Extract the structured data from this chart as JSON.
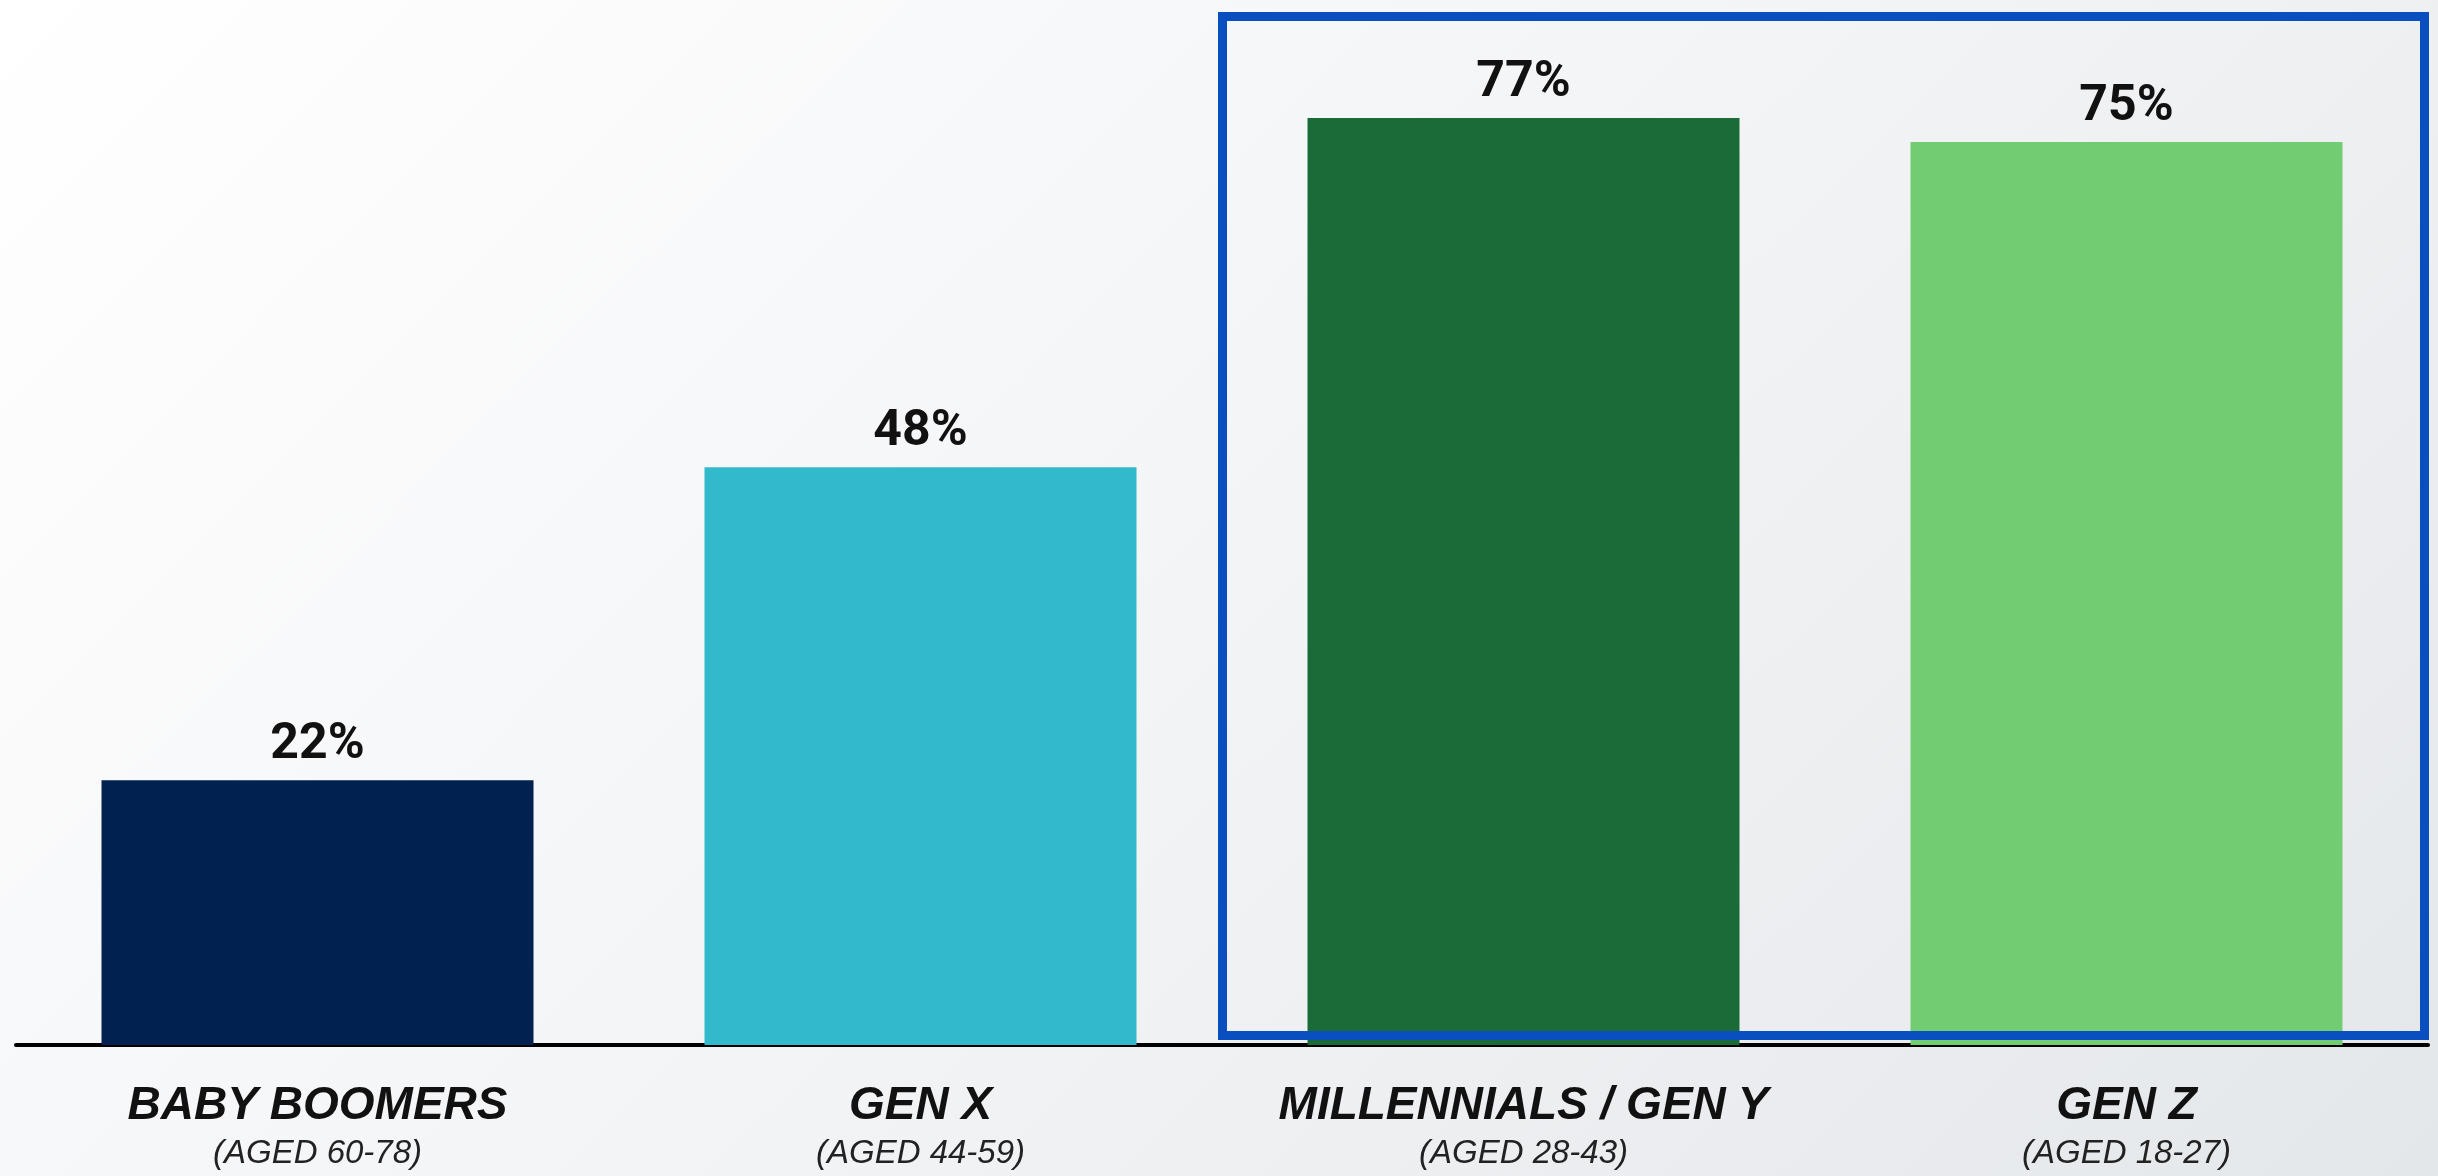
{
  "chart_data": {
    "type": "bar",
    "categories": [
      "BABY BOOMERS\n(AGED 60-78)",
      "GEN X\n(AGED 44-59)",
      "MILLENNIALS / GEN Y\n(AGED 28-43)",
      "GEN Z\n(AGED 18-27)"
    ],
    "values": [
      22,
      48,
      77,
      75
    ],
    "colors": [
      "#012150",
      "#33b9cc",
      "#1b6b39",
      "#72cd72"
    ],
    "value_labels": [
      "22%",
      "48%",
      "77%",
      "75%"
    ]
  }
}
